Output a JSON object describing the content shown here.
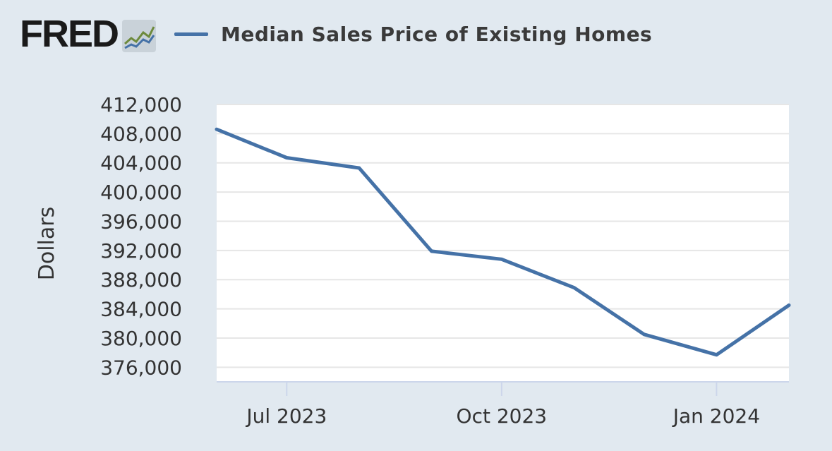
{
  "header": {
    "logo_text": "FRED",
    "legend_label": "Median Sales Price of Existing Homes",
    "series_color": "#4572a7"
  },
  "chart_data": {
    "type": "line",
    "ylabel": "Dollars",
    "xlabel": "",
    "title": "",
    "ylim": [
      374000,
      412000
    ],
    "yticks": [
      376000,
      380000,
      384000,
      388000,
      392000,
      396000,
      400000,
      404000,
      408000,
      412000
    ],
    "ytick_labels": [
      "376,000",
      "380,000",
      "384,000",
      "388,000",
      "392,000",
      "396,000",
      "400,000",
      "404,000",
      "408,000",
      "412,000"
    ],
    "xticks": [
      "2023-07-01",
      "2023-10-01",
      "2024-01-01"
    ],
    "xtick_labels": [
      "Jul 2023",
      "Oct 2023",
      "Jan 2024"
    ],
    "xlim": [
      "2023-06-01",
      "2024-02-01"
    ],
    "grid": true,
    "legend_position": "top",
    "series": [
      {
        "name": "Median Sales Price of Existing Homes",
        "color": "#4572a7",
        "x": [
          "2023-06-01",
          "2023-07-01",
          "2023-08-01",
          "2023-09-01",
          "2023-10-01",
          "2023-11-01",
          "2023-12-01",
          "2024-01-01",
          "2024-02-01"
        ],
        "y": [
          408600,
          404700,
          403300,
          391900,
          390800,
          386900,
          380500,
          377700,
          384500
        ]
      }
    ]
  }
}
